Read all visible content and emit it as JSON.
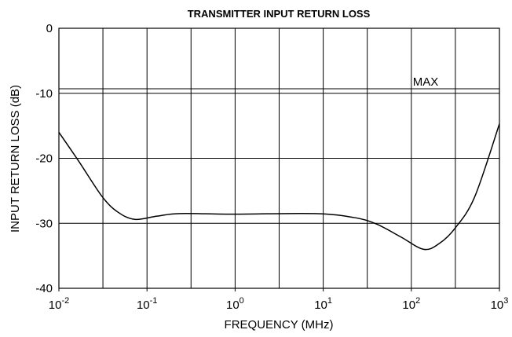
{
  "chart_data": {
    "type": "line",
    "title": "TRANSMITTER INPUT RETURN LOSS",
    "x_label": "FREQUENCY (MHz)",
    "y_label": "INPUT RETURN LOSS (dB)",
    "x_scale": "log",
    "xlim": [
      0.01,
      1000
    ],
    "ylim": [
      -40,
      0
    ],
    "xticks": [
      {
        "value": 0.01,
        "label": "10",
        "exponent": "-2"
      },
      {
        "value": 0.1,
        "label": "10",
        "exponent": "-1"
      },
      {
        "value": 1,
        "label": "10",
        "exponent": "0"
      },
      {
        "value": 10,
        "label": "10",
        "exponent": "1"
      },
      {
        "value": 100,
        "label": "10",
        "exponent": "2"
      },
      {
        "value": 1000,
        "label": "10",
        "exponent": "3"
      }
    ],
    "xgrid": [
      0.01,
      0.0316,
      0.1,
      0.316,
      1,
      3.16,
      10,
      31.6,
      100,
      316,
      1000
    ],
    "yticks": [
      0,
      -10,
      -20,
      -30,
      -40
    ],
    "grid": true,
    "annotations": [
      {
        "text": "MAX",
        "value": -9.3
      }
    ],
    "series": [
      {
        "color": "#000000",
        "x": [
          0.01,
          0.0167,
          0.031,
          0.047,
          0.073,
          0.13,
          0.24,
          1,
          7.9,
          22,
          40,
          76,
          138,
          208,
          316,
          525,
          1000
        ],
        "values": [
          -16.0,
          -20.4,
          -25.9,
          -28.3,
          -29.4,
          -28.9,
          -28.5,
          -28.6,
          -28.5,
          -29.1,
          -30.1,
          -32.1,
          -34.0,
          -33.1,
          -30.7,
          -25.9,
          -14.7
        ]
      }
    ]
  }
}
